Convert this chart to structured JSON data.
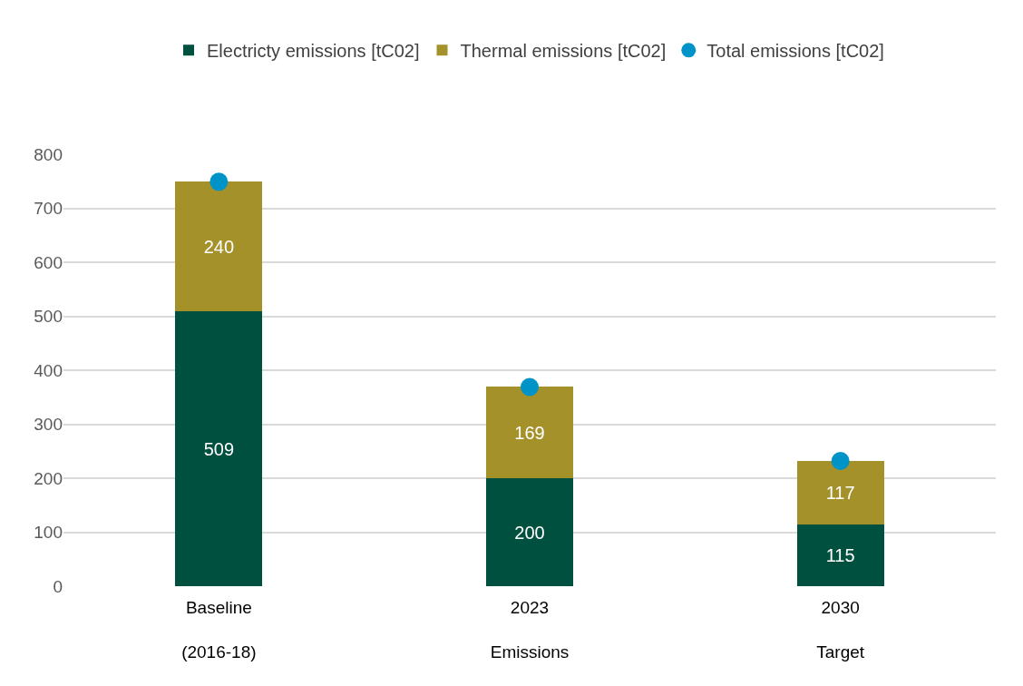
{
  "chart_data": {
    "type": "bar",
    "stacked": true,
    "categories": [
      "Baseline\n(2016-18)",
      "2023\nEmissions",
      "2030\nTarget"
    ],
    "series": [
      {
        "name": "Electricty emissions [tC02]",
        "color": "#00503f",
        "values": [
          509,
          200,
          115
        ],
        "value_labels": [
          "509",
          "200",
          "115"
        ]
      },
      {
        "name": "Thermal emissions [tC02]",
        "color": "#a5912a",
        "values": [
          240,
          169,
          117
        ],
        "value_labels": [
          "240",
          "169",
          "117"
        ]
      },
      {
        "name": "Total emissions [tC02]",
        "type": "scatter",
        "marker": "circle",
        "color": "#0093c8",
        "values": [
          749,
          369,
          232
        ]
      }
    ],
    "ylim": [
      0,
      800
    ],
    "yticks": [
      0,
      100,
      200,
      300,
      400,
      500,
      600,
      700,
      800
    ],
    "grid": "y",
    "legend": "top"
  }
}
